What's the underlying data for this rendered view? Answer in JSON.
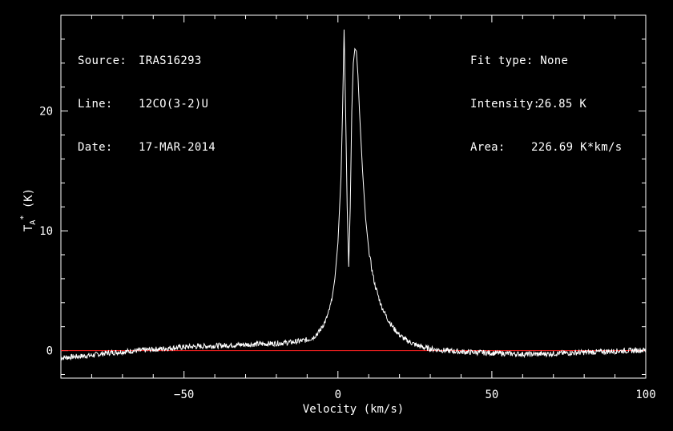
{
  "info_left": {
    "source_label": "Source:",
    "source_value": "IRAS16293",
    "line_label": "Line:",
    "line_value": "12CO(3-2)U",
    "date_label": "Date:",
    "date_value": "17-MAR-2014"
  },
  "info_right": {
    "fit_label": "Fit type:",
    "fit_value": "None",
    "intensity_label": "Intensity:",
    "intensity_value": "26.85 K",
    "area_label": "Area:",
    "area_value": "226.69 K*km/s"
  },
  "colors": {
    "background": "#000000",
    "axes": "#ffffff",
    "spectrum": "#ffffff",
    "baseline": "#ff2020"
  },
  "chart_data": {
    "type": "line",
    "title": "",
    "xlabel": "Velocity (km/s)",
    "ylabel": "T_A^* (K)",
    "xlim": [
      -90,
      100
    ],
    "ylim": [
      -2.3,
      28
    ],
    "x_ticks": [
      -50,
      0,
      50,
      100
    ],
    "y_ticks": [
      0,
      10,
      20
    ],
    "x_tick_labels": [
      "−50",
      "0",
      "50",
      "100"
    ],
    "y_tick_labels": [
      "0",
      "10",
      "20"
    ],
    "grid": false,
    "baseline_y": 0,
    "series": [
      {
        "x": [
          -90,
          -85,
          -80,
          -75,
          -70,
          -65,
          -60,
          -55,
          -50,
          -45,
          -40,
          -35,
          -30,
          -25,
          -20,
          -15,
          -12,
          -10,
          -8,
          -6,
          -4,
          -3,
          -2,
          -1,
          0,
          1,
          1.5,
          2,
          2.5,
          3,
          3.5,
          4,
          4.5,
          5,
          5.5,
          6,
          6.5,
          7,
          8,
          9,
          10,
          11,
          12,
          14,
          16,
          18,
          20,
          22,
          25,
          28,
          30,
          35,
          40,
          45,
          50,
          55,
          60,
          65,
          70,
          75,
          80,
          85,
          90,
          95,
          100
        ],
        "y": [
          -0.6,
          -0.5,
          -0.4,
          -0.2,
          -0.1,
          0.0,
          0.1,
          0.2,
          0.3,
          0.35,
          0.4,
          0.45,
          0.5,
          0.55,
          0.6,
          0.7,
          0.8,
          0.9,
          1.1,
          1.6,
          2.5,
          3.2,
          4.2,
          6.0,
          9.0,
          14.5,
          20.0,
          26.8,
          20.0,
          12.0,
          7.0,
          12.0,
          20.0,
          24.0,
          25.2,
          25.0,
          23.0,
          20.0,
          15.0,
          11.0,
          8.5,
          6.8,
          5.5,
          3.8,
          2.7,
          1.9,
          1.3,
          0.9,
          0.5,
          0.25,
          0.15,
          0.0,
          -0.1,
          -0.15,
          -0.2,
          -0.25,
          -0.3,
          -0.3,
          -0.25,
          -0.2,
          -0.15,
          -0.1,
          -0.05,
          0.0,
          0.05
        ]
      }
    ]
  }
}
